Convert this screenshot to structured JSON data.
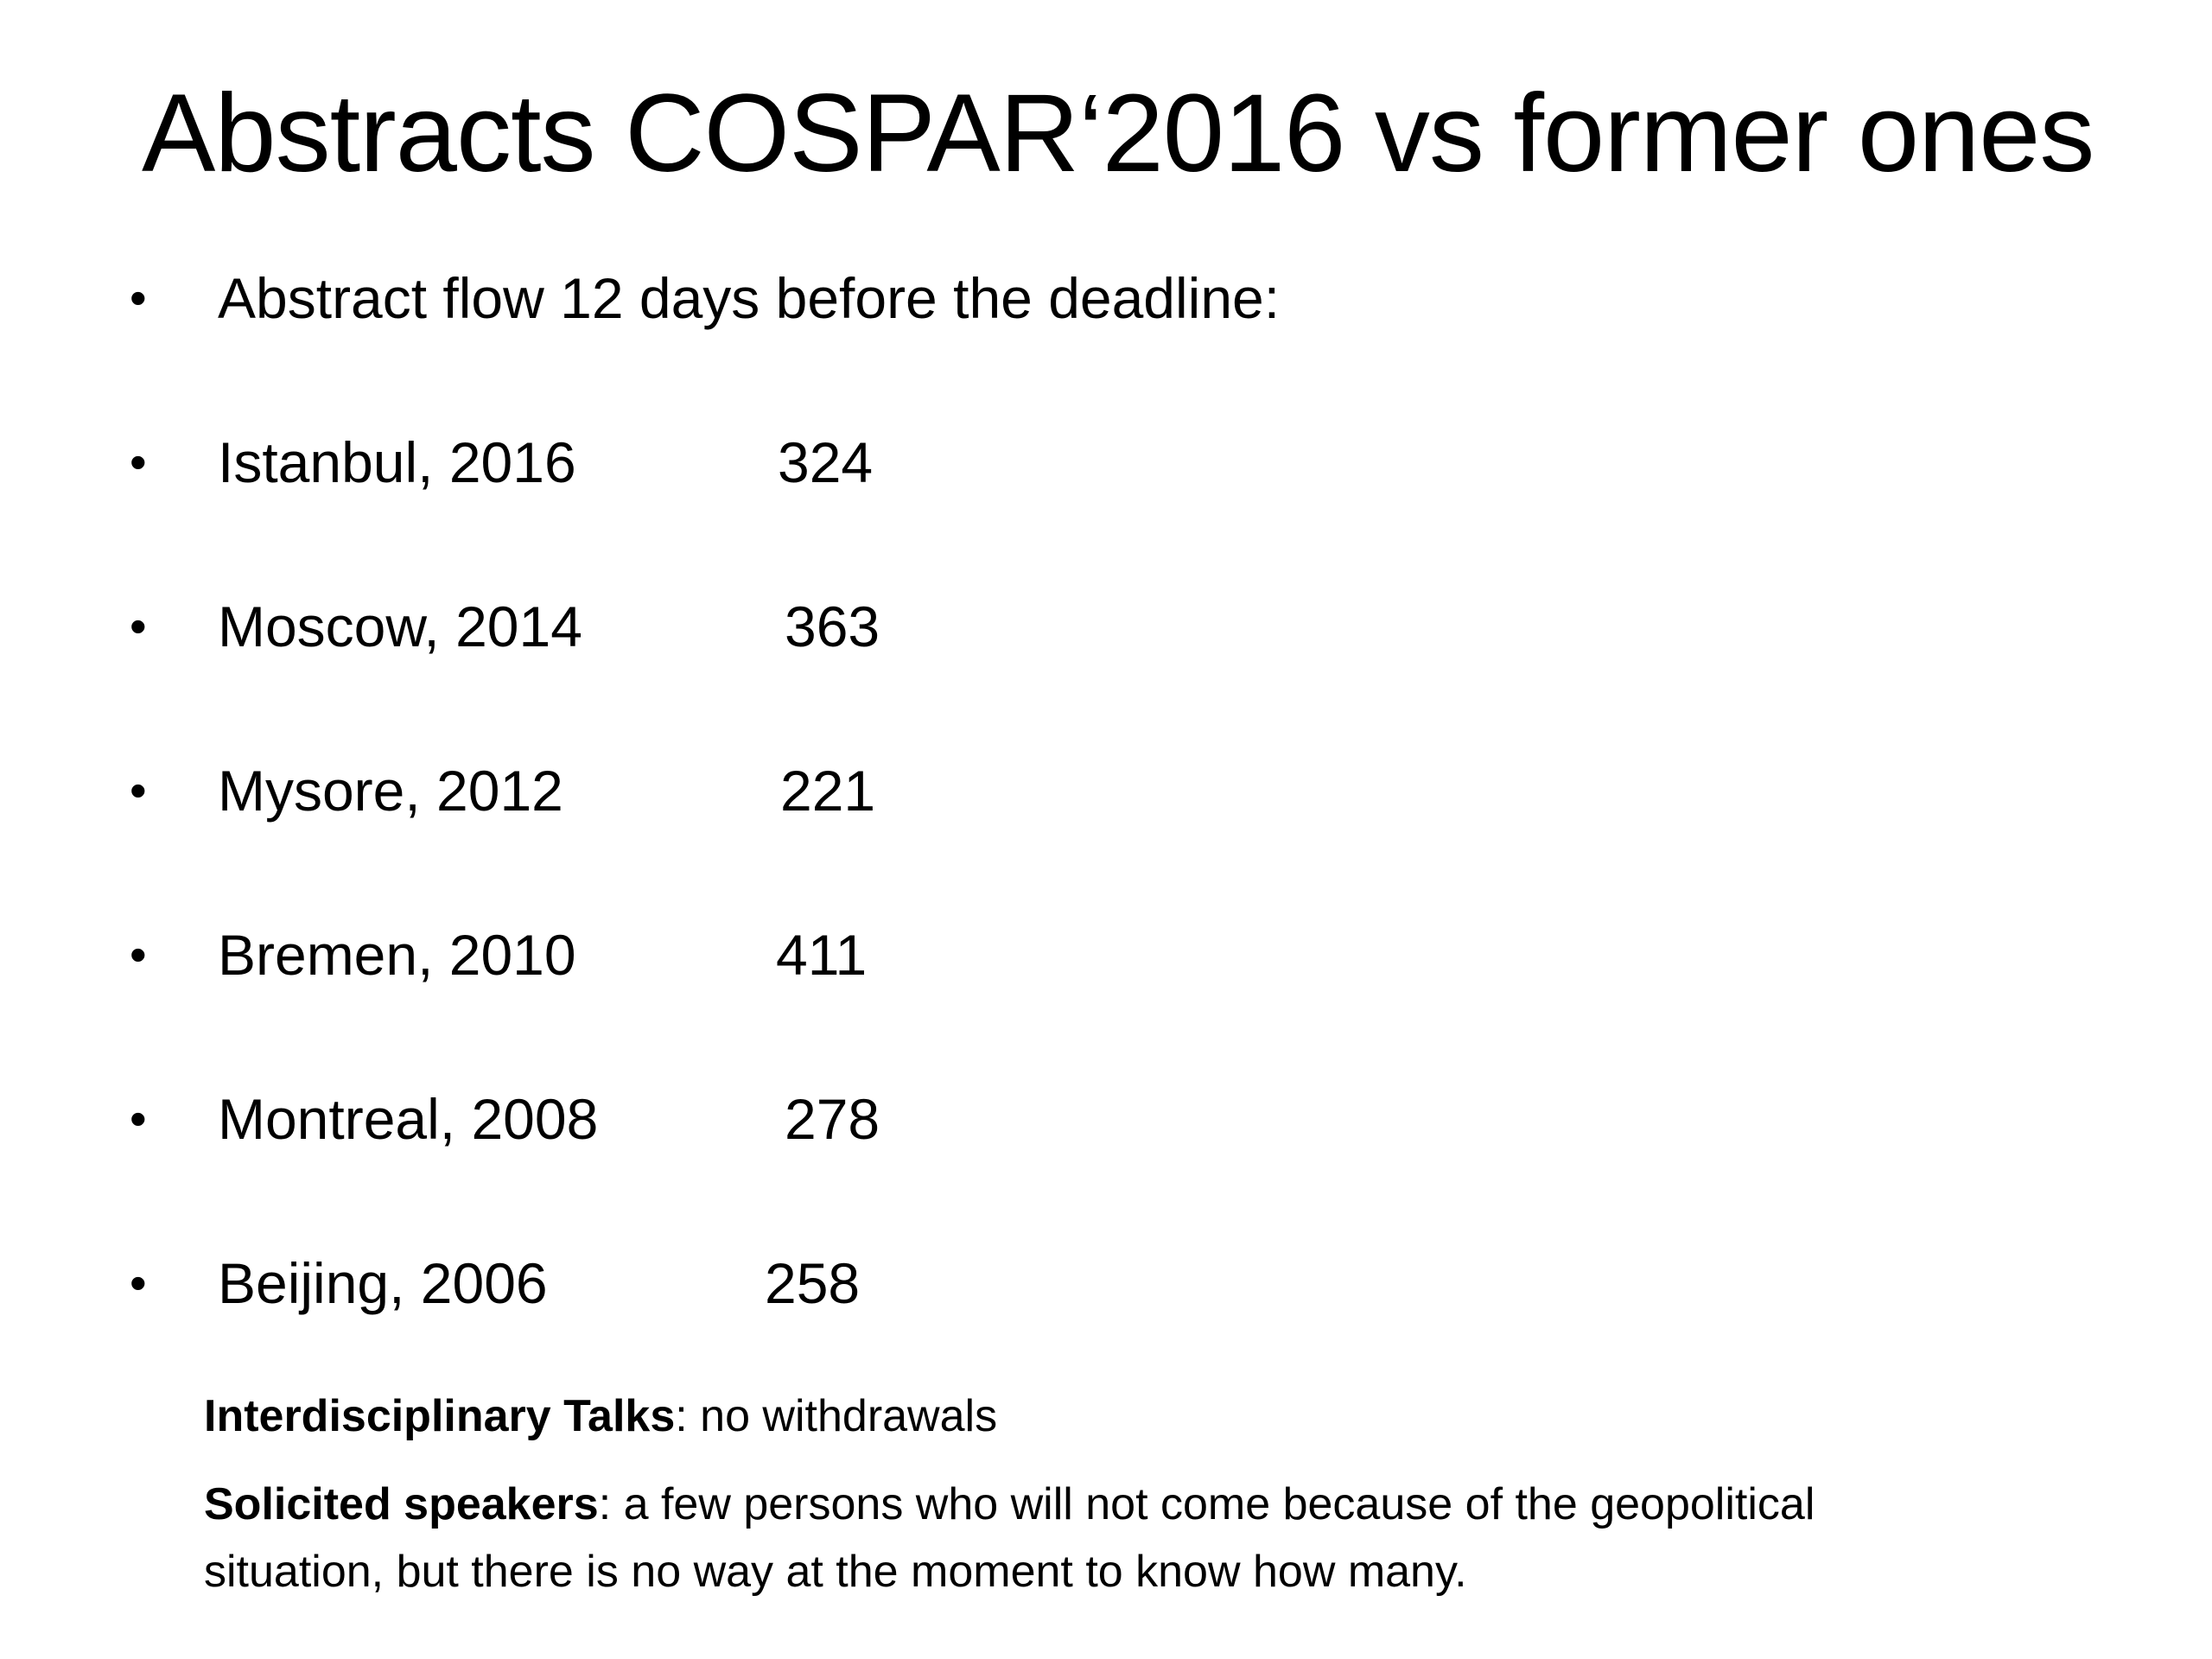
{
  "slide": {
    "title": "Abstracts COSPAR‘2016 vs former ones",
    "intro": "Abstract flow 12 days before the deadline:",
    "bullet_symbol": "•",
    "entries": [
      {
        "label": "Istanbul, 2016",
        "value": "324"
      },
      {
        "label": "Moscow, 2014",
        "value": "363"
      },
      {
        "label": "Mysore, 2012",
        "value": "221"
      },
      {
        "label": "Bremen, 2010",
        "value": "411"
      },
      {
        "label": "Montreal, 2008",
        "value": "278"
      },
      {
        "label": "Beijing, 2006",
        "value": "258"
      }
    ],
    "notes": {
      "interdisciplinary_label": "Interdisciplinary Talks",
      "interdisciplinary_text": ":  no withdrawals",
      "solicited_label": "Solicited speakers",
      "solicited_text": ": a few persons who will not come because of the geopolitical situation, but there is no way at the moment to know how many."
    }
  }
}
